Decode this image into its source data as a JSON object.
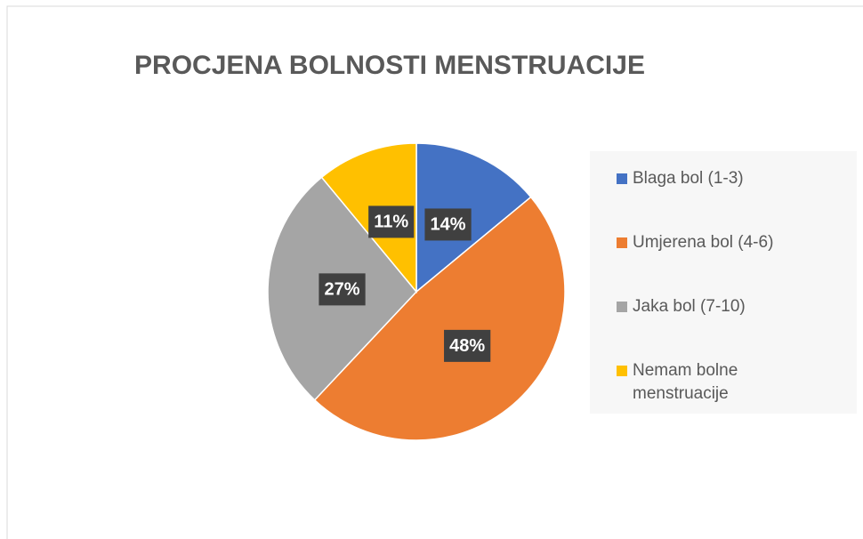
{
  "chart_data": {
    "type": "pie",
    "title": "PROCJENA BOLNOSTI MENSTRUACIJE",
    "categories": [
      "Blaga bol (1-3)",
      "Umjerena bol (4-6)",
      "Jaka bol (7-10)",
      "Nemam bolne menstruacije"
    ],
    "values": [
      14,
      48,
      27,
      11
    ],
    "value_labels": [
      "14%",
      "48%",
      "27%",
      "11%"
    ],
    "colors": [
      "#4472c4",
      "#ed7d31",
      "#a5a5a5",
      "#ffc000"
    ],
    "legend": "right"
  }
}
